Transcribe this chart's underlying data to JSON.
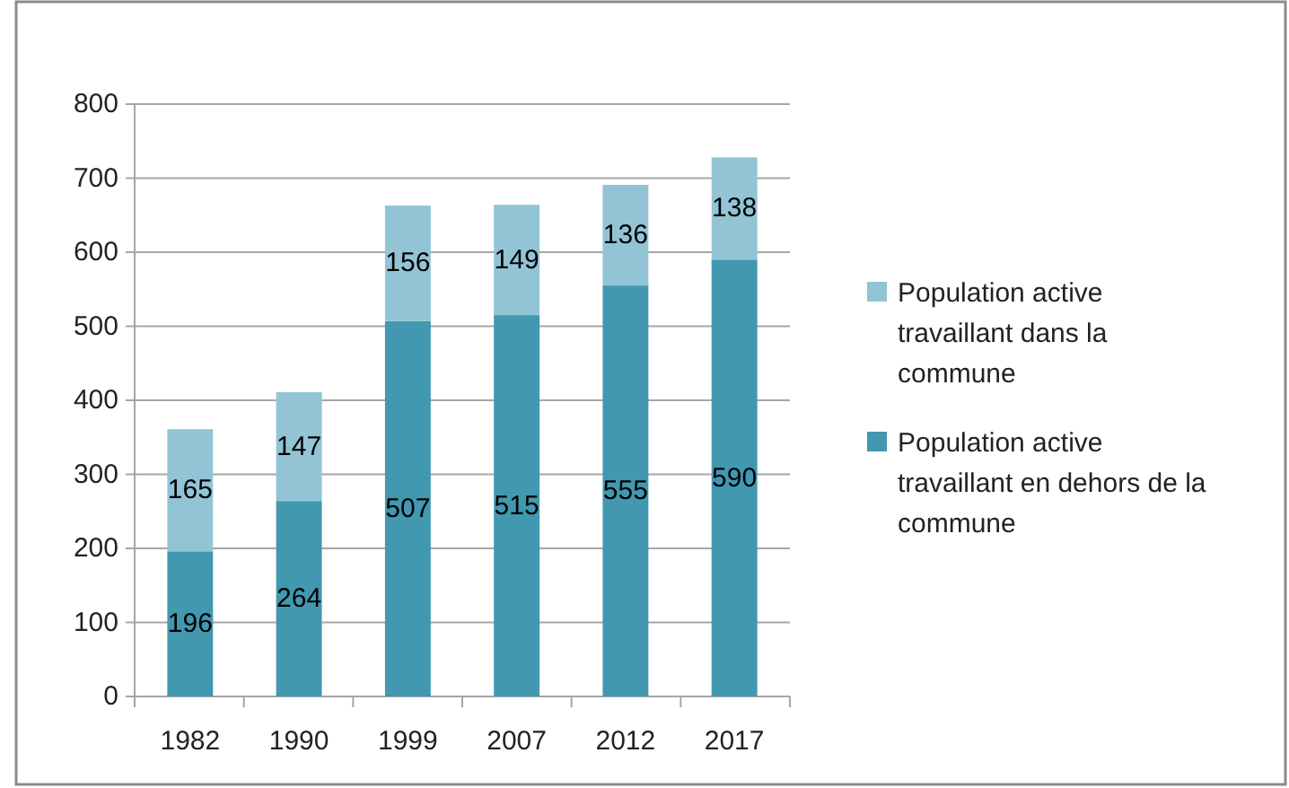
{
  "chart_data": {
    "type": "bar",
    "stacked": true,
    "categories": [
      "1982",
      "1990",
      "1999",
      "2007",
      "2012",
      "2017"
    ],
    "series": [
      {
        "name": "Population active travaillant en dehors de la commune",
        "color": "#4198b0",
        "values": [
          196,
          264,
          507,
          515,
          555,
          590
        ]
      },
      {
        "name": "Population active travaillant dans la commune",
        "color": "#92c4d6",
        "values": [
          165,
          147,
          156,
          149,
          136,
          138
        ]
      }
    ],
    "ylim": [
      0,
      800
    ],
    "yticks": [
      0,
      100,
      200,
      300,
      400,
      500,
      600,
      700,
      800
    ],
    "grid": "y",
    "legend": "right",
    "data_labels": true
  }
}
